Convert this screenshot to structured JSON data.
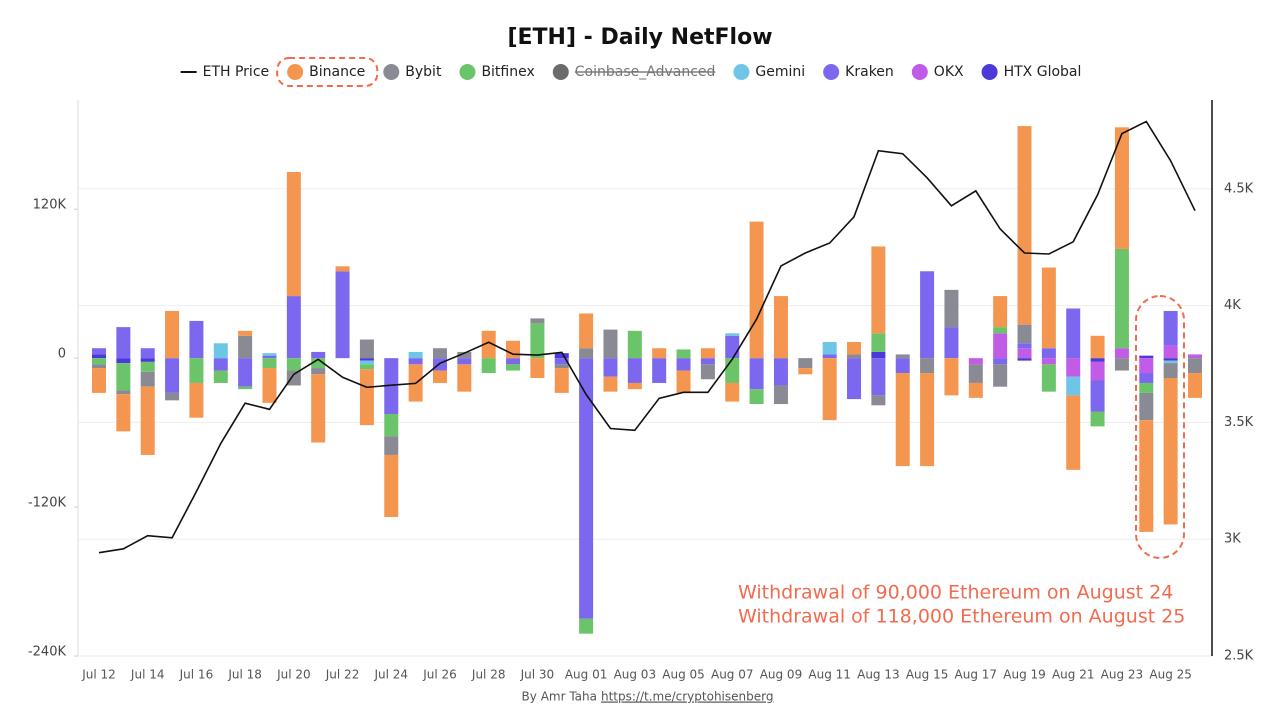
{
  "chart_data": {
    "type": "stacked_bar_line",
    "title": "[ETH] - Daily NetFlow",
    "categories": [
      "Jul 12",
      null,
      "Jul 14",
      null,
      "Jul 16",
      null,
      "Jul 18",
      null,
      "Jul 20",
      null,
      "Jul 22",
      null,
      "Jul 24",
      null,
      "Jul 26",
      null,
      "Jul 28",
      null,
      "Jul 30",
      null,
      "Aug 01",
      null,
      "Aug 03",
      null,
      "Aug 05",
      null,
      "Aug 07",
      null,
      "Aug 09",
      null,
      "Aug 11",
      null,
      "Aug 13",
      null,
      "Aug 15",
      null,
      "Aug 17",
      null,
      "Aug 19",
      null,
      "Aug 21",
      null,
      "Aug 23",
      null,
      "Aug 25",
      null
    ],
    "ylim": [
      -240000,
      208000
    ],
    "yticks": [
      {
        "value": -240000,
        "label": "-240K"
      },
      {
        "value": -120000,
        "label": "-120K"
      },
      0,
      {
        "value": 120000,
        "label": "120K"
      }
    ],
    "y2lim": [
      2500,
      4880
    ],
    "y2ticks": [
      {
        "value": 2500,
        "label": "2.5K"
      },
      {
        "value": 3000,
        "label": "3K"
      },
      {
        "value": 3500,
        "label": "3.5K"
      },
      {
        "value": 4000,
        "label": "4K"
      },
      {
        "value": 4500,
        "label": "4.5K"
      }
    ],
    "grid": true,
    "series": [
      {
        "name": "ETH Price",
        "kind": "line",
        "axis": "y2",
        "color": "#111111",
        "values": [
          2942,
          2959,
          3015,
          3006,
          3204,
          3410,
          3582,
          3556,
          3706,
          3770,
          3693,
          3650,
          3659,
          3667,
          3753,
          3796,
          3843,
          3792,
          3788,
          3800,
          3620,
          3474,
          3466,
          3603,
          3629,
          3629,
          3770,
          3942,
          4170,
          4225,
          4268,
          4380,
          4663,
          4650,
          4547,
          4427,
          4491,
          4328,
          4225,
          4221,
          4273,
          4474,
          4736,
          4788,
          4620,
          4406
        ]
      },
      {
        "name": "Binance",
        "kind": "bar",
        "color": "#f4964f",
        "highlighted": true,
        "values": [
          -20000,
          -30000,
          -55000,
          38000,
          -28000,
          0,
          4000,
          -28000,
          100000,
          -55000,
          4000,
          -45000,
          -50000,
          -30000,
          -10000,
          -22000,
          22000,
          14000,
          -16000,
          -20000,
          28000,
          -12000,
          -5000,
          8000,
          -18000,
          8000,
          -15000,
          110000,
          50000,
          -5000,
          -50000,
          10000,
          70000,
          -75000,
          -75000,
          -30000,
          -12000,
          25000,
          160000,
          65000,
          -60000,
          18000,
          98000,
          -90000,
          -118000,
          -20000
        ]
      },
      {
        "name": "Bybit",
        "kind": "bar",
        "color": "#8a8a94",
        "values": [
          -3000,
          -3000,
          -12000,
          -6000,
          0,
          0,
          18000,
          0,
          -12000,
          -5000,
          0,
          15000,
          -15000,
          0,
          8000,
          5000,
          0,
          0,
          4000,
          -3000,
          8000,
          23000,
          0,
          0,
          0,
          -12000,
          0,
          0,
          -15000,
          -8000,
          0,
          3000,
          -8000,
          3000,
          -12000,
          30000,
          -15000,
          -18000,
          15000,
          0,
          0,
          0,
          -10000,
          -22000,
          -12000,
          -12000
        ]
      },
      {
        "name": "Bitfinex",
        "kind": "bar",
        "color": "#6cc46a",
        "values": [
          -5000,
          -22000,
          -8000,
          0,
          -20000,
          -10000,
          -2000,
          -8000,
          -10000,
          -8000,
          0,
          -4000,
          -18000,
          0,
          0,
          0,
          -12000,
          -5000,
          28000,
          0,
          -12000,
          0,
          22000,
          0,
          7000,
          0,
          -20000,
          -12000,
          0,
          0,
          0,
          0,
          15000,
          0,
          0,
          0,
          0,
          5000,
          0,
          -22000,
          0,
          -12000,
          80000,
          -8000,
          0,
          0
        ]
      },
      {
        "name": "Coinbase_Advanced",
        "kind": "bar",
        "color": "#6b6b6b",
        "hidden": true,
        "values": [
          null,
          null,
          null,
          null,
          null,
          null,
          null,
          null,
          null,
          null,
          null,
          null,
          null,
          null,
          null,
          null,
          null,
          null,
          null,
          null,
          null,
          null,
          null,
          null,
          null,
          null,
          null,
          null,
          null,
          null,
          null,
          null,
          null,
          null,
          null,
          null,
          null,
          null,
          null,
          null,
          null,
          null,
          null,
          null,
          null,
          null
        ]
      },
      {
        "name": "Gemini",
        "kind": "bar",
        "color": "#6ec6e6",
        "values": [
          0,
          0,
          0,
          0,
          0,
          12000,
          0,
          2000,
          0,
          0,
          0,
          -3000,
          0,
          5000,
          0,
          0,
          0,
          0,
          0,
          0,
          0,
          0,
          0,
          0,
          0,
          0,
          2000,
          0,
          0,
          0,
          10000,
          0,
          0,
          0,
          0,
          0,
          0,
          0,
          0,
          0,
          -15000,
          0,
          0,
          0,
          -2000,
          0
        ]
      },
      {
        "name": "Kraken",
        "kind": "bar",
        "color": "#7b68ee",
        "values": [
          5000,
          25000,
          8000,
          -28000,
          30000,
          -10000,
          -23000,
          2000,
          50000,
          5000,
          70000,
          0,
          -45000,
          -5000,
          -10000,
          -5000,
          0,
          -5000,
          0,
          -5000,
          -210000,
          -15000,
          -20000,
          -20000,
          -10000,
          -5000,
          18000,
          -25000,
          -22000,
          0,
          3000,
          -33000,
          -30000,
          -12000,
          70000,
          25000,
          0,
          -5000,
          4000,
          8000,
          40000,
          -25000,
          0,
          -8000,
          28000,
          0
        ]
      },
      {
        "name": "OKX",
        "kind": "bar",
        "color": "#c05ce6",
        "values": [
          0,
          0,
          0,
          0,
          0,
          0,
          0,
          0,
          0,
          0,
          0,
          0,
          0,
          0,
          0,
          0,
          0,
          0,
          0,
          0,
          0,
          0,
          0,
          0,
          0,
          0,
          0,
          0,
          0,
          0,
          0,
          0,
          0,
          0,
          0,
          0,
          -5000,
          20000,
          8000,
          -5000,
          -15000,
          -15000,
          8000,
          -12000,
          10000,
          3000
        ]
      },
      {
        "name": "HTX Global",
        "kind": "bar",
        "color": "#4b3ad9",
        "values": [
          3000,
          -4000,
          -3000,
          0,
          0,
          0,
          0,
          0,
          0,
          0,
          0,
          -2000,
          0,
          0,
          0,
          0,
          0,
          0,
          0,
          4000,
          0,
          0,
          0,
          0,
          0,
          0,
          0,
          0,
          0,
          0,
          0,
          0,
          5000,
          0,
          0,
          0,
          0,
          0,
          -2000,
          0,
          0,
          -3000,
          0,
          2000,
          -2000,
          0
        ]
      }
    ],
    "annotations": [
      "Withdrawal of 90,000 Ethereum on August 24",
      "Withdrawal of 118,000 Ethereum on August 25"
    ],
    "credit": "By Amr Taha",
    "link": "https://t.me/cryptohisenberg"
  }
}
